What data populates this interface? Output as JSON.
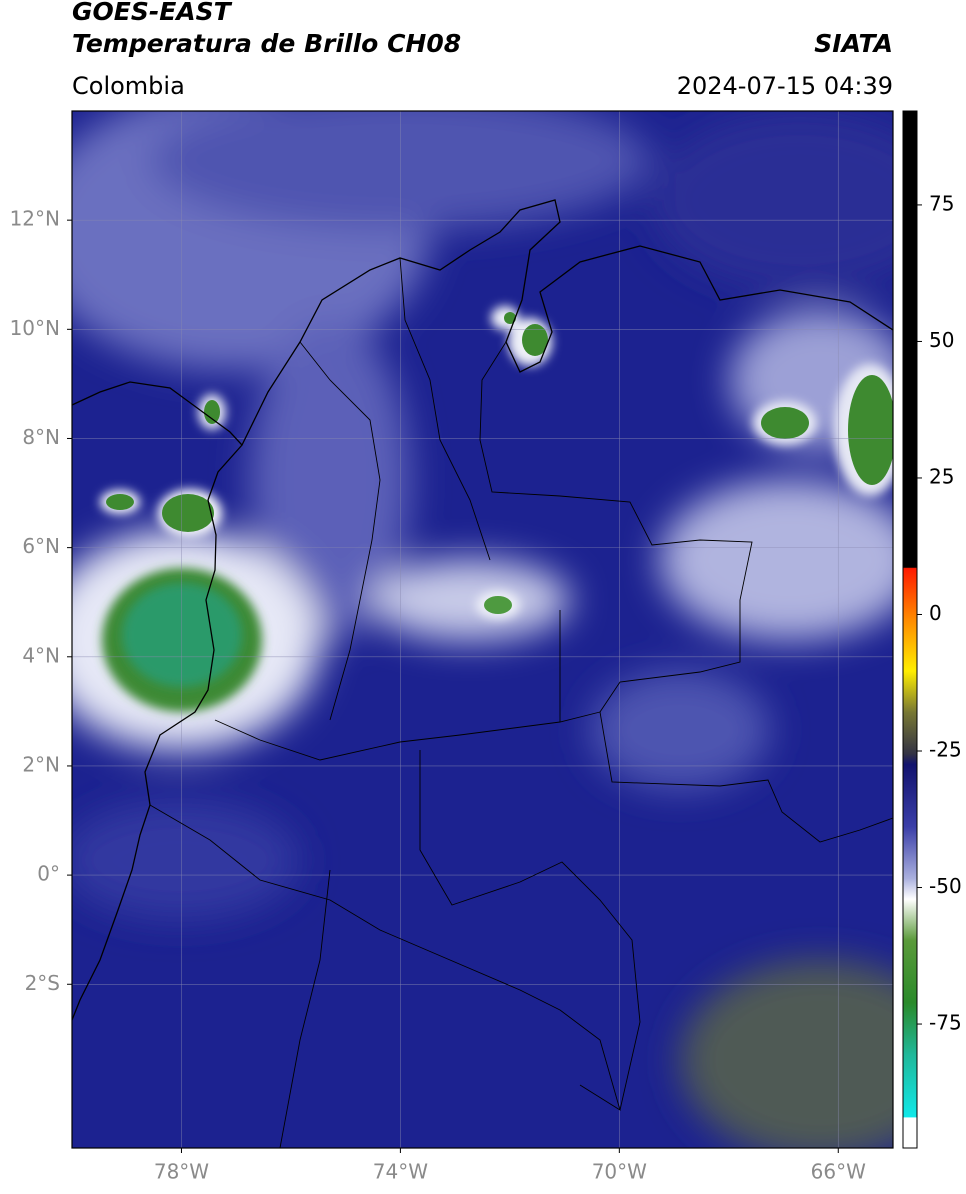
{
  "header": {
    "title": "GOES-EAST",
    "subtitle": "Temperatura de Brillo CH08",
    "source": "SIATA",
    "region": "Colombia",
    "datetime": "2024-07-15 04:39"
  },
  "map": {
    "xlim": [
      -80,
      -65
    ],
    "ylim": [
      -5,
      14
    ],
    "xticks": [
      {
        "value": -78,
        "label": "78°W"
      },
      {
        "value": -74,
        "label": "74°W"
      },
      {
        "value": -70,
        "label": "70°W"
      },
      {
        "value": -66,
        "label": "66°W"
      }
    ],
    "yticks": [
      {
        "value": 12,
        "label": "12°N"
      },
      {
        "value": 10,
        "label": "10°N"
      },
      {
        "value": 8,
        "label": "8°N"
      },
      {
        "value": 6,
        "label": "6°N"
      },
      {
        "value": 4,
        "label": "4°N"
      },
      {
        "value": 2,
        "label": "2°N"
      },
      {
        "value": 0,
        "label": "0°"
      },
      {
        "value": -2,
        "label": "2°S"
      }
    ],
    "grid": true
  },
  "colorbar": {
    "lim": [
      -97.7,
      92.2
    ],
    "ticks": [
      75,
      50,
      25,
      0,
      -25,
      -50,
      -75
    ]
  }
}
